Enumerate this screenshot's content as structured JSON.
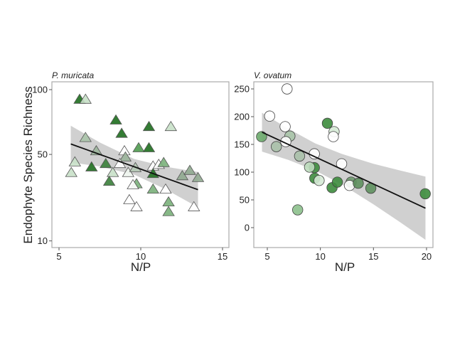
{
  "chart_data": [
    {
      "type": "scatter",
      "title": "P. muricata",
      "xlabel": "N/P",
      "ylabel": "Endophyte Species Richness",
      "xlim": [
        4.6,
        15.4
      ],
      "y_scale": "sqrt",
      "xticks": [
        5,
        10,
        15
      ],
      "yticks": [
        10,
        50,
        100
      ],
      "marker": "triangle",
      "grid": false,
      "points": [
        {
          "x": 6.26,
          "y": 91,
          "fill": "#1e6e1e"
        },
        {
          "x": 6.62,
          "y": 91,
          "fill": "#c8e0c8"
        },
        {
          "x": 8.48,
          "y": 74,
          "fill": "#1e6e1e"
        },
        {
          "x": 8.83,
          "y": 64,
          "fill": "#1e6e1e"
        },
        {
          "x": 10.5,
          "y": 69,
          "fill": "#1e6e1e"
        },
        {
          "x": 11.84,
          "y": 69,
          "fill": "#c8e0c8"
        },
        {
          "x": 6.62,
          "y": 61,
          "fill": "#aac4aa"
        },
        {
          "x": 7.28,
          "y": 52,
          "fill": "#9ab49a"
        },
        {
          "x": 9.0,
          "y": 52,
          "fill": "#ffffff"
        },
        {
          "x": 9.87,
          "y": 54,
          "fill": "#4f9a4f"
        },
        {
          "x": 10.5,
          "y": 54,
          "fill": "#1e6e1e"
        },
        {
          "x": 5.97,
          "y": 45,
          "fill": "#c8e0c8"
        },
        {
          "x": 5.75,
          "y": 38.8,
          "fill": "#c8e0c8"
        },
        {
          "x": 6.99,
          "y": 42,
          "fill": "#1e6e1e"
        },
        {
          "x": 7.86,
          "y": 44,
          "fill": "#3a803a"
        },
        {
          "x": 9.06,
          "y": 48,
          "fill": "#9ab49a"
        },
        {
          "x": 8.29,
          "y": 38.8,
          "fill": "#c8e0c8"
        },
        {
          "x": 8.07,
          "y": 34,
          "fill": "#3a803a"
        },
        {
          "x": 8.72,
          "y": 44,
          "fill": "#ffffff"
        },
        {
          "x": 9.23,
          "y": 38.8,
          "fill": "#eef5ee"
        },
        {
          "x": 9.67,
          "y": 41.6,
          "fill": "#b4c8b4"
        },
        {
          "x": 9.74,
          "y": 32.7,
          "fill": "#7ab07a"
        },
        {
          "x": 9.52,
          "y": 32.2,
          "fill": "#ffffff"
        },
        {
          "x": 10.75,
          "y": 42.5,
          "fill": "#ffffff"
        },
        {
          "x": 11.1,
          "y": 43.5,
          "fill": "#ffffff"
        },
        {
          "x": 11.4,
          "y": 44.6,
          "fill": "#7ab07a"
        },
        {
          "x": 10.75,
          "y": 38.2,
          "fill": "#1e6e1e"
        },
        {
          "x": 10.75,
          "y": 30,
          "fill": "#7ab07a"
        },
        {
          "x": 11.52,
          "y": 30,
          "fill": "#ffffff"
        },
        {
          "x": 9.3,
          "y": 25,
          "fill": "#ffffff"
        },
        {
          "x": 9.74,
          "y": 21.9,
          "fill": "#ffffff"
        },
        {
          "x": 11.7,
          "y": 24,
          "fill": "#7ab07a"
        },
        {
          "x": 11.7,
          "y": 19.9,
          "fill": "#7ab07a"
        },
        {
          "x": 12.54,
          "y": 37,
          "fill": "#8fa88f"
        },
        {
          "x": 13.0,
          "y": 40,
          "fill": "#8fa88f"
        },
        {
          "x": 13.5,
          "y": 36,
          "fill": "#8fa88f"
        },
        {
          "x": 13.25,
          "y": 21.9,
          "fill": "#ffffff"
        }
      ],
      "fit": {
        "x": [
          5.72,
          13.5
        ],
        "y": [
          56.9,
          30
        ]
      },
      "ci": {
        "x": [
          5.72,
          7.5,
          9.6,
          11.5,
          13.5
        ],
        "lower": [
          45,
          42.6,
          37.9,
          30.3,
          21.9
        ],
        "upper": [
          70,
          57.9,
          47.1,
          42.5,
          39.4
        ]
      }
    },
    {
      "type": "scatter",
      "title": "V. ovatum",
      "xlabel": "N/P",
      "ylabel": "",
      "xlim": [
        3.7,
        20.7
      ],
      "ylim": [
        -37,
        262
      ],
      "xticks": [
        5,
        10,
        15,
        20
      ],
      "yticks": [
        0,
        50,
        100,
        150,
        200,
        250
      ],
      "marker": "circle",
      "grid": false,
      "points": [
        {
          "x": 6.86,
          "y": 250,
          "fill": "#ffffff"
        },
        {
          "x": 5.22,
          "y": 201,
          "fill": "#ffffff"
        },
        {
          "x": 6.68,
          "y": 182,
          "fill": "#ffffff"
        },
        {
          "x": 7.13,
          "y": 165,
          "fill": "#a8c4a8"
        },
        {
          "x": 4.46,
          "y": 164,
          "fill": "#6aa86a"
        },
        {
          "x": 6.74,
          "y": 155,
          "fill": "#ffffff"
        },
        {
          "x": 5.85,
          "y": 146,
          "fill": "#a8c0a8"
        },
        {
          "x": 8.04,
          "y": 129,
          "fill": "#a8c0a8"
        },
        {
          "x": 9.43,
          "y": 133,
          "fill": "#ffffff"
        },
        {
          "x": 10.66,
          "y": 188,
          "fill": "#3d8c3d"
        },
        {
          "x": 11.29,
          "y": 173,
          "fill": "#d5ead5"
        },
        {
          "x": 11.22,
          "y": 164,
          "fill": "#ffffff"
        },
        {
          "x": 12.0,
          "y": 115,
          "fill": "#ffffff"
        },
        {
          "x": 9.43,
          "y": 108,
          "fill": "#3d8c3d"
        },
        {
          "x": 8.98,
          "y": 109,
          "fill": "#bcdcbc"
        },
        {
          "x": 9.47,
          "y": 89,
          "fill": "#3d8c3d"
        },
        {
          "x": 9.88,
          "y": 85,
          "fill": "#d5ead5"
        },
        {
          "x": 11.1,
          "y": 72,
          "fill": "#3d8c3d"
        },
        {
          "x": 11.6,
          "y": 82,
          "fill": "#3d8c3d"
        },
        {
          "x": 12.9,
          "y": 82,
          "fill": "#6e9a6e"
        },
        {
          "x": 12.74,
          "y": 76,
          "fill": "#ffffff"
        },
        {
          "x": 13.57,
          "y": 80,
          "fill": "#5e905e"
        },
        {
          "x": 14.75,
          "y": 71,
          "fill": "#5e905e"
        },
        {
          "x": 19.88,
          "y": 61,
          "fill": "#3d8c3d"
        },
        {
          "x": 7.86,
          "y": 32,
          "fill": "#8cc08c"
        }
      ],
      "fit": {
        "x": [
          4.5,
          19.9
        ],
        "y": [
          172,
          35
        ]
      },
      "ci": {
        "x": [
          4.5,
          7,
          9.5,
          12,
          15,
          17.5,
          19.9
        ],
        "lower": [
          137,
          122,
          103,
          78,
          42,
          10,
          -22
        ],
        "upper": [
          207,
          178,
          152,
          133,
          115,
          103,
          92
        ]
      }
    }
  ]
}
